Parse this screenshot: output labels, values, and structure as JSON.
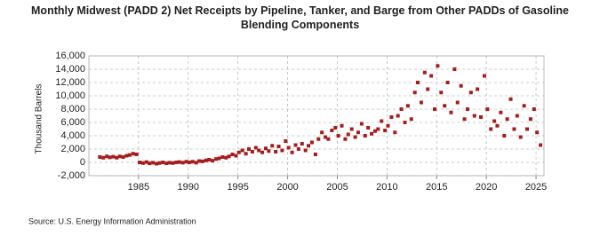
{
  "chart_data": {
    "type": "scatter",
    "title": "Monthly Midwest (PADD 2) Net Receipts by Pipeline, Tanker, and Barge from Other PADDs of Gasoline Blending Components",
    "y_label": "Thousand Barrels",
    "source": "Source: U.S. Energy Information Administration",
    "xlim": [
      1980,
      2025.8
    ],
    "xticks": [
      1985,
      1990,
      1995,
      2000,
      2005,
      2010,
      2015,
      2020,
      2025
    ],
    "ylim": [
      -2000,
      16000
    ],
    "yticks": [
      {
        "value": -2000,
        "label": "-2,000"
      },
      0,
      {
        "value": 2000,
        "label": "2,000"
      },
      {
        "value": 4000,
        "label": "4,000"
      },
      {
        "value": 6000,
        "label": "6,000"
      },
      {
        "value": 8000,
        "label": "8,000"
      },
      {
        "value": 10000,
        "label": "10,000"
      },
      {
        "value": 12000,
        "label": "12,000"
      },
      {
        "value": 14000,
        "label": "14,000"
      },
      {
        "value": 16000,
        "label": "16,000"
      }
    ],
    "grid": true,
    "series": [
      {
        "name": "Net Receipts",
        "color": "#a51d1d",
        "x": [
          1981.1,
          1981.45,
          1981.8,
          1982.1,
          1982.45,
          1982.8,
          1983.1,
          1983.45,
          1983.8,
          1984.1,
          1984.45,
          1984.8,
          1985.1,
          1985.45,
          1985.8,
          1986.1,
          1986.45,
          1986.8,
          1987.1,
          1987.45,
          1987.8,
          1988.1,
          1988.45,
          1988.8,
          1989.1,
          1989.45,
          1989.8,
          1990.1,
          1990.45,
          1990.8,
          1991.1,
          1991.45,
          1991.8,
          1992.1,
          1992.45,
          1992.8,
          1993.1,
          1993.45,
          1993.8,
          1994.1,
          1994.45,
          1994.8,
          1995.1,
          1995.45,
          1995.8,
          1996.1,
          1996.45,
          1996.8,
          1997.1,
          1997.45,
          1997.8,
          1998.1,
          1998.45,
          1998.8,
          1999.1,
          1999.45,
          1999.8,
          2000.1,
          2000.45,
          2000.8,
          2001.1,
          2001.45,
          2001.8,
          2002.1,
          2002.45,
          2002.8,
          2003.1,
          2003.45,
          2003.8,
          2004.1,
          2004.45,
          2004.8,
          2005.1,
          2005.45,
          2005.8,
          2006.1,
          2006.45,
          2006.8,
          2007.1,
          2007.45,
          2007.8,
          2008.1,
          2008.45,
          2008.8,
          2009.1,
          2009.45,
          2009.8,
          2010.1,
          2010.45,
          2010.8,
          2011.1,
          2011.45,
          2011.8,
          2012.1,
          2012.45,
          2012.8,
          2013.1,
          2013.45,
          2013.8,
          2014.1,
          2014.45,
          2014.8,
          2015.1,
          2015.45,
          2015.8,
          2016.1,
          2016.45,
          2016.8,
          2017.1,
          2017.45,
          2017.8,
          2018.1,
          2018.45,
          2018.8,
          2019.1,
          2019.45,
          2019.8,
          2020.1,
          2020.45,
          2020.8,
          2021.1,
          2021.45,
          2021.8,
          2022.1,
          2022.45,
          2022.8,
          2023.1,
          2023.45,
          2023.8,
          2024.1,
          2024.45,
          2024.8,
          2025.1,
          2025.45
        ],
        "values": [
          800,
          700,
          900,
          750,
          850,
          700,
          900,
          800,
          1000,
          1100,
          1300,
          1200,
          0,
          -100,
          50,
          -150,
          -50,
          -200,
          -100,
          0,
          -150,
          -50,
          -100,
          0,
          50,
          -50,
          100,
          0,
          100,
          -50,
          200,
          150,
          300,
          400,
          250,
          500,
          600,
          800,
          700,
          900,
          1200,
          1000,
          1500,
          1800,
          1300,
          2000,
          1600,
          2200,
          1800,
          1500,
          2100,
          1700,
          2500,
          1600,
          2400,
          1800,
          3200,
          2200,
          1500,
          2600,
          2000,
          2800,
          1800,
          2500,
          3000,
          1200,
          3500,
          4500,
          3800,
          3500,
          4800,
          5200,
          4000,
          5500,
          3500,
          4200,
          5000,
          3800,
          4500,
          5800,
          4000,
          5200,
          4300,
          4700,
          5000,
          6200,
          4800,
          5500,
          6800,
          4500,
          7000,
          8000,
          6000,
          8500,
          6500,
          10500,
          12000,
          9000,
          13500,
          11000,
          13000,
          8000,
          14500,
          10500,
          8500,
          12000,
          7500,
          14000,
          9000,
          11500,
          6500,
          8000,
          10500,
          7000,
          11000,
          6800,
          13000,
          8000,
          5000,
          6200,
          5500,
          7500,
          4000,
          6500,
          9500,
          5000,
          7000,
          3800,
          8500,
          5000,
          6500,
          8000,
          4500,
          2600
        ]
      }
    ]
  }
}
